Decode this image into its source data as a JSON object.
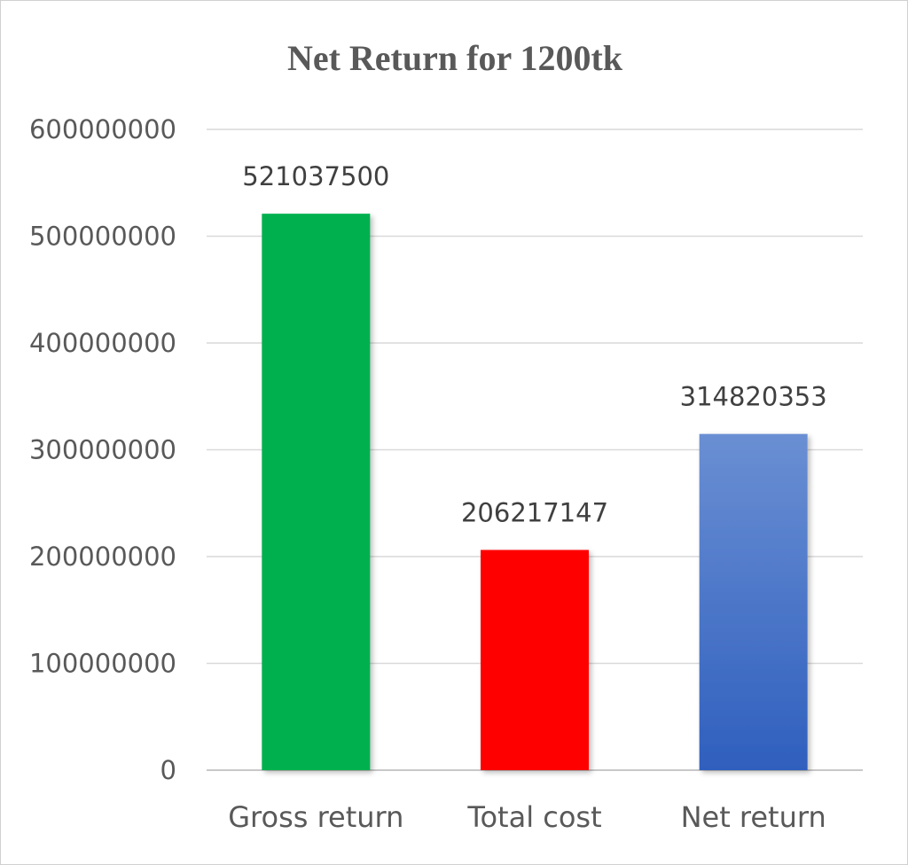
{
  "chart_data": {
    "type": "bar",
    "title": "Net Return for 1200tk",
    "xlabel": "",
    "ylabel": "",
    "categories": [
      "Gross return",
      "Total cost",
      "Net return"
    ],
    "values": [
      521037500,
      206217147,
      314820353
    ],
    "data_labels": [
      "521037500",
      "206217147",
      "314820353"
    ],
    "ylim": [
      0,
      600000000
    ],
    "yticks": [
      0,
      100000000,
      200000000,
      300000000,
      400000000,
      500000000,
      600000000
    ],
    "ytick_labels": [
      "0",
      "100000000",
      "200000000",
      "300000000",
      "400000000",
      "500000000",
      "600000000"
    ],
    "colors": [
      "#00b050",
      "#ff0000",
      "#4472c4"
    ],
    "grid": true,
    "legend": "none"
  }
}
